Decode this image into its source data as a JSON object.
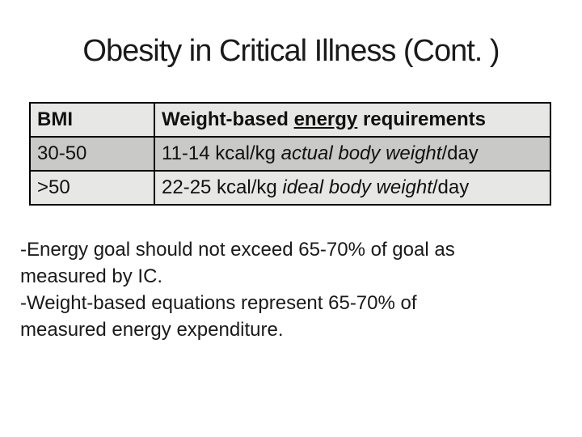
{
  "title": "Obesity in Critical Illness (Cont. )",
  "table": {
    "header": {
      "bmi": "BMI",
      "req_prefix": "Weight-based ",
      "req_underlined": "energy",
      "req_suffix": " requirements"
    },
    "rows": [
      {
        "bmi": "30-50",
        "req_prefix": "11-14 kcal/kg ",
        "req_italic": "actual body weight",
        "req_suffix": "/day"
      },
      {
        "bmi": ">50",
        "req_prefix": "22-25 kcal/kg ",
        "req_italic": "ideal body weight",
        "req_suffix": "/day"
      }
    ]
  },
  "notes": [
    {
      "lines": [
        "-Energy goal should not exceed 65-70% of goal as",
        "measured by IC."
      ]
    },
    {
      "lines": [
        "-Weight-based equations represent 65-70% of",
        "measured energy expenditure."
      ]
    }
  ],
  "colors": {
    "background": "#ffffff",
    "title_text": "#1a1a1a",
    "body_text": "#1a1a1a",
    "table_border": "#000000",
    "table_row_light": "#e7e7e6",
    "table_row_shaded": "#c9c9c8"
  }
}
